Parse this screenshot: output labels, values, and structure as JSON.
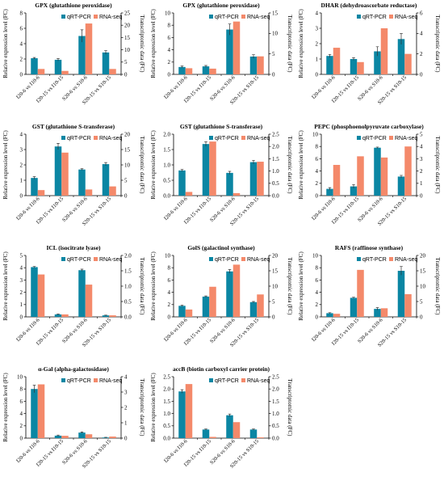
{
  "legend": [
    "qRT-PCR",
    "RNA-seq"
  ],
  "colors": {
    "qrt": "#0b86a3",
    "rna": "#f4896a",
    "axis": "#000000"
  },
  "chart_data": [
    {
      "type": "bar",
      "title": "GPX (glutathione peroxidase)",
      "categories": [
        "I20-6 vs I10-6",
        "I20-15 vs I10-15",
        "S20-6 vs S10-6",
        "S20-15 vs S10-15"
      ],
      "ylabel_left": "Relative expression level (FC)",
      "ylabel_right": "Transcriptomic data (FC)",
      "ylim_left": [
        0,
        8
      ],
      "yticks_left": [
        0,
        2,
        4,
        6,
        8
      ],
      "ylim_right": [
        0,
        25
      ],
      "yticks_right": [
        0,
        5,
        10,
        15,
        20,
        25
      ],
      "series": [
        {
          "name": "qRT-PCR",
          "axis": "left",
          "values": [
            2.1,
            1.9,
            5.0,
            2.85
          ],
          "errors": [
            0.1,
            0.15,
            0.8,
            0.25
          ]
        },
        {
          "name": "RNA-seq",
          "axis": "right",
          "values": [
            2.2,
            1.4,
            20.7,
            2.2
          ]
        }
      ]
    },
    {
      "type": "bar",
      "title": "GPX (glutathione peroxidase)",
      "categories": [
        "I20-6 vs I10-6",
        "I20-15 vs I10-15",
        "S20-6 vs S10-6",
        "S20-15 vs S10-15"
      ],
      "ylabel_left": "Relative expression level (FC)",
      "ylabel_right": "Transcriptomic data (FC)",
      "ylim_left": [
        0,
        10
      ],
      "yticks_left": [
        0,
        2,
        4,
        6,
        8,
        10
      ],
      "ylim_right": [
        0,
        15
      ],
      "yticks_right": [
        0,
        5,
        10,
        15
      ],
      "series": [
        {
          "name": "qRT-PCR",
          "axis": "left",
          "values": [
            1.2,
            1.3,
            7.3,
            2.9
          ],
          "errors": [
            0.15,
            0.15,
            0.9,
            0.3
          ]
        },
        {
          "name": "RNA-seq",
          "axis": "right",
          "values": [
            1.5,
            1.4,
            12.9,
            4.4
          ]
        }
      ]
    },
    {
      "type": "bar",
      "title": "DHAR (dehydroascorbate reductase)",
      "categories": [
        "I20-6 vs I10-6",
        "I20-15 vs I10-15",
        "S20-6 vs S10-6",
        "S20-15 vs S10-15"
      ],
      "ylabel_left": "Relative expression level (FC)",
      "ylabel_right": "Transcriptomic data (FC)",
      "ylim_left": [
        0,
        4
      ],
      "yticks_left": [
        0,
        1,
        2,
        3,
        4
      ],
      "ylim_right": [
        0,
        6
      ],
      "yticks_right": [
        0,
        2,
        4,
        6
      ],
      "series": [
        {
          "name": "qRT-PCR",
          "axis": "left",
          "values": [
            1.2,
            1.0,
            1.5,
            2.3
          ],
          "errors": [
            0.1,
            0.08,
            0.3,
            0.35
          ]
        },
        {
          "name": "RNA-seq",
          "axis": "right",
          "values": [
            2.6,
            1.2,
            4.5,
            2.0
          ]
        }
      ]
    },
    {
      "type": "bar",
      "title": "GST (glutathione S-transferase)",
      "categories": [
        "I20-6 vs I10-6",
        "I20-15 vs I10-15",
        "S20-6 vs S10-6",
        "S20-15 vs S10-15"
      ],
      "ylabel_left": "Relative expression level (FC)",
      "ylabel_right": "Transcriptomic data (FC)",
      "ylim_left": [
        0,
        4
      ],
      "yticks_left": [
        0,
        1,
        2,
        3,
        4
      ],
      "ylim_right": [
        0,
        20
      ],
      "yticks_right": [
        0,
        5,
        10,
        15,
        20
      ],
      "series": [
        {
          "name": "qRT-PCR",
          "axis": "left",
          "values": [
            1.15,
            3.2,
            1.7,
            2.05
          ],
          "errors": [
            0.08,
            0.2,
            0.05,
            0.1
          ]
        },
        {
          "name": "RNA-seq",
          "axis": "right",
          "values": [
            1.8,
            14.0,
            2.0,
            3.0
          ]
        }
      ]
    },
    {
      "type": "bar",
      "title": "GST (glutathione S-transferase)",
      "categories": [
        "I20-6 vs I10-6",
        "I20-15 vs I10-15",
        "S20-6 vs S10-6",
        "S20-15 vs S10-15"
      ],
      "ylabel_left": "Relative expression level (FC)",
      "ylabel_right": "Transcriptomic data (FC)",
      "ylim_left": [
        0,
        2.0
      ],
      "yticks_left": [
        0.0,
        0.5,
        1.0,
        1.5,
        2.0
      ],
      "ylim_right": [
        0,
        2.5
      ],
      "yticks_right": [
        0.0,
        0.5,
        1.0,
        1.5,
        2.0,
        2.5
      ],
      "series": [
        {
          "name": "qRT-PCR",
          "axis": "left",
          "values": [
            0.82,
            1.68,
            0.74,
            1.09
          ],
          "errors": [
            0.03,
            0.07,
            0.05,
            0.06
          ]
        },
        {
          "name": "RNA-seq",
          "axis": "right",
          "values": [
            0.15,
            2.2,
            0.1,
            1.38
          ]
        }
      ]
    },
    {
      "type": "bar",
      "title": "PEPC (phosphoenolpyruvate carboxylase)",
      "categories": [
        "I20-6 vs I10-6",
        "I20-15 vs I10-15",
        "S20-6 vs S10-6",
        "S20-15 vs S10-15"
      ],
      "ylabel_left": "Relative expression level (FC)",
      "ylabel_right": "Transcriptomic data (FC)",
      "ylim_left": [
        0,
        10
      ],
      "yticks_left": [
        0,
        2,
        4,
        6,
        8,
        10
      ],
      "ylim_right": [
        0,
        5
      ],
      "yticks_right": [
        0,
        1,
        2,
        3,
        4,
        5
      ],
      "series": [
        {
          "name": "qRT-PCR",
          "axis": "left",
          "values": [
            1.1,
            1.5,
            7.8,
            3.1
          ],
          "errors": [
            0.2,
            0.3,
            0.1,
            0.2
          ]
        },
        {
          "name": "RNA-seq",
          "axis": "right",
          "values": [
            2.5,
            3.2,
            3.1,
            4.0
          ]
        }
      ]
    },
    {
      "type": "bar",
      "title": "ICL (isocitrate lyase)",
      "categories": [
        "I20-6 vs I10-6",
        "I20-15 vs I10-15",
        "S20-6 vs S10-6",
        "S20-15 vs S10-15"
      ],
      "ylabel_left": "Relative expression level (FC)",
      "ylabel_right": "Transcriptomic data (FC)",
      "ylim_left": [
        0,
        5
      ],
      "yticks_left": [
        0,
        1,
        2,
        3,
        4,
        5
      ],
      "ylim_right": [
        0,
        2.0
      ],
      "yticks_right": [
        0.0,
        0.5,
        1.0,
        1.5,
        2.0
      ],
      "series": [
        {
          "name": "qRT-PCR",
          "axis": "left",
          "values": [
            4.05,
            0.2,
            3.8,
            0.12
          ],
          "errors": [
            0.05,
            0.03,
            0.08,
            0.02
          ]
        },
        {
          "name": "RNA-seq",
          "axis": "right",
          "values": [
            1.38,
            0.08,
            1.05,
            0.05
          ]
        }
      ]
    },
    {
      "type": "bar",
      "title": "GolS (galactinol synthase)",
      "categories": [
        "I20-6 vs I10-6",
        "I20-15 vs I10-15",
        "S20-6 vs S10-6",
        "S20-15 vs S10-15"
      ],
      "ylabel_left": "Relative expression level (FC)",
      "ylabel_right": "Transcriptomic data (FC)",
      "ylim_left": [
        0,
        10
      ],
      "yticks_left": [
        0,
        2,
        4,
        6,
        8,
        10
      ],
      "ylim_right": [
        0,
        20
      ],
      "yticks_right": [
        0,
        5,
        10,
        15,
        20
      ],
      "series": [
        {
          "name": "qRT-PCR",
          "axis": "left",
          "values": [
            1.8,
            3.3,
            7.4,
            2.4
          ],
          "errors": [
            0.1,
            0.1,
            0.3,
            0.1
          ]
        },
        {
          "name": "RNA-seq",
          "axis": "right",
          "values": [
            2.4,
            9.8,
            17.0,
            7.3
          ]
        }
      ]
    },
    {
      "type": "bar",
      "title": "RAFS (raffinose synthase)",
      "categories": [
        "I20-6 vs I10-6",
        "I20-15 vs I10-15",
        "S20-6 vs S10-6",
        "S20-15 vs S10-15"
      ],
      "ylabel_left": "Relative expression level (FC)",
      "ylabel_right": "Transcriptomic data (FC)",
      "ylim_left": [
        0,
        10
      ],
      "yticks_left": [
        0,
        2,
        4,
        6,
        8,
        10
      ],
      "ylim_right": [
        0,
        20
      ],
      "yticks_right": [
        0,
        5,
        10,
        15,
        20
      ],
      "series": [
        {
          "name": "qRT-PCR",
          "axis": "left",
          "values": [
            0.6,
            3.1,
            1.3,
            7.5
          ],
          "errors": [
            0.08,
            0.1,
            0.2,
            0.7
          ]
        },
        {
          "name": "RNA-seq",
          "axis": "right",
          "values": [
            1.0,
            15.3,
            2.8,
            7.4
          ]
        }
      ]
    },
    {
      "type": "bar",
      "title": "α-Gal (alpha-galactosidase)",
      "categories": [
        "I20-6 vs I10-6",
        "I20-15 vs I10-15",
        "S20-6 vs S10-6",
        "S20-15 vs S10-15"
      ],
      "ylabel_left": "Relative expression level (FC)",
      "ylabel_right": "Transcriptomic data (FC)",
      "ylim_left": [
        0,
        10
      ],
      "yticks_left": [
        0,
        2,
        4,
        6,
        8,
        10
      ],
      "ylim_right": [
        0,
        4
      ],
      "yticks_right": [
        0,
        1,
        2,
        3,
        4
      ],
      "series": [
        {
          "name": "qRT-PCR",
          "axis": "left",
          "values": [
            8.0,
            0.4,
            0.9,
            0.1
          ],
          "errors": [
            0.6,
            0.1,
            0.1,
            0.03
          ]
        },
        {
          "name": "RNA-seq",
          "axis": "right",
          "values": [
            3.5,
            0.15,
            0.25,
            0.1
          ]
        }
      ]
    },
    {
      "type": "bar",
      "title": "accB (biotin carboxyl carrier protein)",
      "categories": [
        "I20-6 vs I10-6",
        "I20-15 vs I10-15",
        "S20-6 vs S10-6",
        "S20-15 vs S10-15"
      ],
      "ylabel_left": "Relative expression level (FC)",
      "ylabel_right": "Transcriptomic data (FC)",
      "ylim_left": [
        0,
        2.5
      ],
      "yticks_left": [
        0.0,
        0.5,
        1.0,
        1.5,
        2.0,
        2.5
      ],
      "ylim_right": [
        0,
        2.5
      ],
      "yticks_right": [
        0.0,
        0.5,
        1.0,
        1.5,
        2.0,
        2.5
      ],
      "series": [
        {
          "name": "qRT-PCR",
          "axis": "left",
          "values": [
            1.9,
            0.35,
            0.93,
            0.35
          ],
          "errors": [
            0.07,
            0.02,
            0.05,
            0.02
          ]
        },
        {
          "name": "RNA-seq",
          "axis": "right",
          "values": [
            2.2,
            0.05,
            0.65,
            0.03
          ]
        }
      ]
    }
  ]
}
